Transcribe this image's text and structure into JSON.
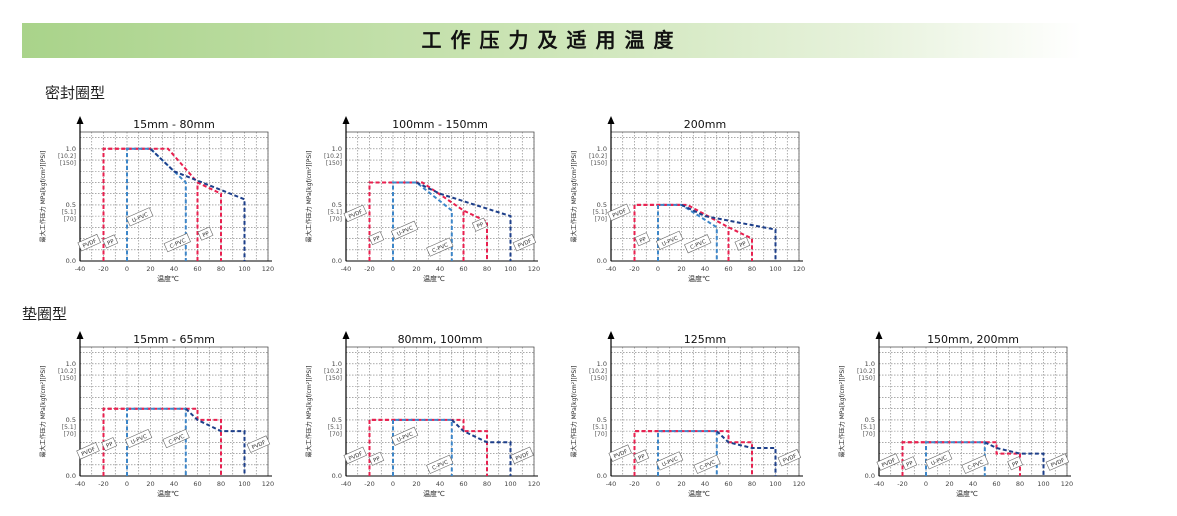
{
  "page_title": "工作压力及适用温度",
  "sections": [
    {
      "label": "密封圈型"
    },
    {
      "label": "垫圈型"
    }
  ],
  "colors": {
    "banner": "#a9d38a",
    "red": "#e8204f",
    "light_blue": "#3d86c8",
    "dark_blue": "#1d3f8a",
    "grid": "#777777"
  },
  "axis_text": {
    "ylabel": "最大工作压力 MPa[kgf/cm²][PSI]",
    "xlabel": "温度℃",
    "y_marks": [
      {
        "v": 1.0,
        "label": "1.0",
        "sub": "[10.2]",
        "sub2": "[150]"
      },
      {
        "v": 0.5,
        "label": "0.5",
        "sub": "[5.1]",
        "sub2": "[70]"
      },
      {
        "v": 0.0,
        "label": "0.0",
        "sub": "",
        "sub2": ""
      }
    ],
    "x_ticks": [
      "-40",
      "-20",
      "0",
      "20",
      "40",
      "60",
      "80",
      "100",
      "120"
    ]
  },
  "chart_data": [
    {
      "section": 0,
      "type": "line",
      "title": "15mm - 80mm",
      "xlim": [
        -40,
        120
      ],
      "ylim": [
        0,
        1.15
      ],
      "grid": true,
      "series": [
        {
          "name": "PVDF",
          "color": "red",
          "points": [
            [
              -20,
              0
            ],
            [
              -20,
              1.0
            ],
            [
              35,
              1.0
            ],
            [
              60,
              0.7
            ],
            [
              80,
              0.6
            ],
            [
              80,
              0
            ]
          ],
          "label_at": [
            -32,
            0.16
          ]
        },
        {
          "name": "PP",
          "color": "red",
          "points": [
            [
              -20,
              0
            ],
            [
              -20,
              1.0
            ],
            [
              20,
              1.0
            ]
          ],
          "label_at": [
            -14,
            0.17
          ]
        },
        {
          "name": "U-PVC",
          "color": "light_blue",
          "points": [
            [
              0,
              0
            ],
            [
              0,
              1.0
            ],
            [
              20,
              1.0
            ],
            [
              50,
              0.7
            ],
            [
              50,
              0
            ]
          ],
          "label_at": [
            11,
            0.39
          ]
        },
        {
          "name": "C-PVC",
          "color": "dark_blue",
          "points": [
            [
              20,
              1.0
            ],
            [
              40,
              0.8
            ],
            [
              100,
              0.55
            ],
            [
              100,
              0
            ]
          ],
          "label_at": [
            43,
            0.16
          ]
        },
        {
          "name": "PP",
          "color": "red",
          "points": [
            [
              60,
              0
            ],
            [
              60,
              0.7
            ]
          ],
          "label_at": [
            67,
            0.24
          ]
        }
      ]
    },
    {
      "section": 0,
      "type": "line",
      "title": "100mm - 150mm",
      "xlim": [
        -40,
        120
      ],
      "ylim": [
        0,
        1.15
      ],
      "grid": true,
      "series": [
        {
          "name": "PVDF",
          "color": "red",
          "points": [
            [
              -20,
              0
            ],
            [
              -20,
              0.7
            ],
            [
              25,
              0.7
            ],
            [
              60,
              0.45
            ],
            [
              80,
              0.35
            ],
            [
              80,
              0
            ]
          ],
          "label_at": [
            -32,
            0.42
          ]
        },
        {
          "name": "PP",
          "color": "red",
          "points": [
            [
              -20,
              0
            ],
            [
              -20,
              0.7
            ],
            [
              20,
              0.7
            ]
          ],
          "label_at": [
            -14,
            0.2
          ]
        },
        {
          "name": "U-PVC",
          "color": "light_blue",
          "points": [
            [
              0,
              0
            ],
            [
              0,
              0.7
            ],
            [
              20,
              0.7
            ],
            [
              50,
              0.45
            ],
            [
              50,
              0
            ]
          ],
          "label_at": [
            10,
            0.27
          ]
        },
        {
          "name": "C-PVC",
          "color": "dark_blue",
          "points": [
            [
              20,
              0.7
            ],
            [
              40,
              0.6
            ],
            [
              100,
              0.4
            ],
            [
              100,
              0
            ]
          ],
          "label_at": [
            40,
            0.12
          ]
        },
        {
          "name": "PP",
          "color": "red",
          "points": [
            [
              60,
              0
            ],
            [
              60,
              0.45
            ]
          ],
          "label_at": [
            74,
            0.32
          ]
        },
        {
          "name": "PVDF",
          "color": "red",
          "points": [
            [
              80,
              0.35
            ]
          ],
          "label_at": [
            112,
            0.16
          ]
        }
      ]
    },
    {
      "section": 0,
      "type": "line",
      "title": "200mm",
      "xlim": [
        -40,
        120
      ],
      "ylim": [
        0,
        1.15
      ],
      "grid": true,
      "series": [
        {
          "name": "PVDF",
          "color": "red",
          "points": [
            [
              -20,
              0
            ],
            [
              -20,
              0.5
            ],
            [
              25,
              0.5
            ],
            [
              60,
              0.3
            ],
            [
              80,
              0.2
            ],
            [
              80,
              0
            ]
          ],
          "label_at": [
            -33,
            0.43
          ]
        },
        {
          "name": "PP",
          "color": "red",
          "points": [
            [
              -20,
              0
            ],
            [
              -20,
              0.5
            ],
            [
              20,
              0.5
            ]
          ],
          "label_at": [
            -13,
            0.19
          ]
        },
        {
          "name": "U-PVC",
          "color": "light_blue",
          "points": [
            [
              0,
              0
            ],
            [
              0,
              0.5
            ],
            [
              20,
              0.5
            ],
            [
              50,
              0.3
            ],
            [
              50,
              0
            ]
          ],
          "label_at": [
            10,
            0.18
          ]
        },
        {
          "name": "C-PVC",
          "color": "dark_blue",
          "points": [
            [
              20,
              0.5
            ],
            [
              40,
              0.4
            ],
            [
              100,
              0.28
            ],
            [
              100,
              0
            ]
          ],
          "label_at": [
            34,
            0.15
          ]
        },
        {
          "name": "PP",
          "color": "red",
          "points": [
            [
              60,
              0
            ],
            [
              60,
              0.3
            ]
          ],
          "label_at": [
            72,
            0.15
          ]
        }
      ]
    },
    {
      "section": 1,
      "type": "line",
      "title": "15mm - 65mm",
      "xlim": [
        -40,
        120
      ],
      "ylim": [
        0,
        1.15
      ],
      "grid": true,
      "series": [
        {
          "name": "PVDF",
          "color": "red",
          "points": [
            [
              -20,
              0
            ],
            [
              -20,
              0.6
            ],
            [
              60,
              0.6
            ],
            [
              60,
              0.5
            ],
            [
              80,
              0.5
            ],
            [
              80,
              0
            ]
          ],
          "label_at": [
            -33,
            0.22
          ]
        },
        {
          "name": "PP",
          "color": "red",
          "points": [
            [
              -20,
              0
            ],
            [
              -20,
              0.6
            ],
            [
              20,
              0.6
            ]
          ],
          "label_at": [
            -15,
            0.28
          ]
        },
        {
          "name": "U-PVC",
          "color": "light_blue",
          "points": [
            [
              0,
              0
            ],
            [
              0,
              0.6
            ],
            [
              50,
              0.6
            ],
            [
              50,
              0
            ]
          ],
          "label_at": [
            10,
            0.33
          ]
        },
        {
          "name": "C-PVC",
          "color": "dark_blue",
          "points": [
            [
              50,
              0.6
            ],
            [
              60,
              0.5
            ],
            [
              80,
              0.4
            ],
            [
              100,
              0.4
            ],
            [
              100,
              0
            ]
          ],
          "label_at": [
            42,
            0.33
          ]
        },
        {
          "name": "PVDF",
          "color": "red",
          "points": [
            [
              80,
              0.5
            ]
          ],
          "label_at": [
            112,
            0.28
          ]
        }
      ]
    },
    {
      "section": 1,
      "type": "line",
      "title": "80mm, 100mm",
      "xlim": [
        -40,
        120
      ],
      "ylim": [
        0,
        1.15
      ],
      "grid": true,
      "series": [
        {
          "name": "PVDF",
          "color": "red",
          "points": [
            [
              -20,
              0
            ],
            [
              -20,
              0.5
            ],
            [
              60,
              0.5
            ],
            [
              60,
              0.4
            ],
            [
              80,
              0.4
            ],
            [
              80,
              0
            ]
          ],
          "label_at": [
            -32,
            0.18
          ]
        },
        {
          "name": "PP",
          "color": "red",
          "points": [
            [
              -20,
              0
            ],
            [
              -20,
              0.5
            ],
            [
              20,
              0.5
            ]
          ],
          "label_at": [
            -14,
            0.15
          ]
        },
        {
          "name": "U-PVC",
          "color": "light_blue",
          "points": [
            [
              0,
              0
            ],
            [
              0,
              0.5
            ],
            [
              50,
              0.5
            ],
            [
              50,
              0
            ]
          ],
          "label_at": [
            10,
            0.35
          ]
        },
        {
          "name": "C-PVC",
          "color": "dark_blue",
          "points": [
            [
              50,
              0.5
            ],
            [
              60,
              0.4
            ],
            [
              80,
              0.3
            ],
            [
              100,
              0.3
            ],
            [
              100,
              0
            ]
          ],
          "label_at": [
            40,
            0.1
          ]
        },
        {
          "name": "PVDF",
          "color": "red",
          "points": [
            [
              80,
              0.4
            ]
          ],
          "label_at": [
            110,
            0.18
          ]
        }
      ]
    },
    {
      "section": 1,
      "type": "line",
      "title": "125mm",
      "xlim": [
        -40,
        120
      ],
      "ylim": [
        0,
        1.15
      ],
      "grid": true,
      "series": [
        {
          "name": "PVDF",
          "color": "red",
          "points": [
            [
              -20,
              0
            ],
            [
              -20,
              0.4
            ],
            [
              60,
              0.4
            ],
            [
              60,
              0.3
            ],
            [
              80,
              0.3
            ],
            [
              80,
              0
            ]
          ],
          "label_at": [
            -32,
            0.2
          ]
        },
        {
          "name": "PP",
          "color": "red",
          "points": [
            [
              -20,
              0
            ],
            [
              -20,
              0.4
            ],
            [
              20,
              0.4
            ]
          ],
          "label_at": [
            -14,
            0.17
          ]
        },
        {
          "name": "U-PVC",
          "color": "light_blue",
          "points": [
            [
              0,
              0
            ],
            [
              0,
              0.4
            ],
            [
              50,
              0.4
            ],
            [
              50,
              0
            ]
          ],
          "label_at": [
            10,
            0.13
          ]
        },
        {
          "name": "C-PVC",
          "color": "dark_blue",
          "points": [
            [
              50,
              0.4
            ],
            [
              60,
              0.3
            ],
            [
              80,
              0.25
            ],
            [
              100,
              0.25
            ],
            [
              100,
              0
            ]
          ],
          "label_at": [
            42,
            0.1
          ]
        },
        {
          "name": "PVDF",
          "color": "red",
          "points": [
            [
              80,
              0.3
            ]
          ],
          "label_at": [
            112,
            0.16
          ]
        }
      ]
    },
    {
      "section": 1,
      "type": "line",
      "title": "150mm, 200mm",
      "xlim": [
        -40,
        120
      ],
      "ylim": [
        0,
        1.15
      ],
      "grid": true,
      "series": [
        {
          "name": "PVDF",
          "color": "red",
          "points": [
            [
              -20,
              0
            ],
            [
              -20,
              0.3
            ],
            [
              60,
              0.3
            ],
            [
              60,
              0.2
            ],
            [
              80,
              0.2
            ],
            [
              80,
              0
            ]
          ],
          "label_at": [
            -32,
            0.12
          ]
        },
        {
          "name": "PP",
          "color": "red",
          "points": [
            [
              -20,
              0
            ],
            [
              -20,
              0.3
            ],
            [
              20,
              0.3
            ]
          ],
          "label_at": [
            -14,
            0.11
          ]
        },
        {
          "name": "U-PVC",
          "color": "light_blue",
          "points": [
            [
              0,
              0
            ],
            [
              0,
              0.3
            ],
            [
              50,
              0.3
            ],
            [
              50,
              0
            ]
          ],
          "label_at": [
            11,
            0.14
          ]
        },
        {
          "name": "C-PVC",
          "color": "dark_blue",
          "points": [
            [
              50,
              0.3
            ],
            [
              60,
              0.25
            ],
            [
              80,
              0.2
            ],
            [
              100,
              0.2
            ],
            [
              100,
              0
            ]
          ],
          "label_at": [
            42,
            0.1
          ]
        },
        {
          "name": "PP",
          "color": "red",
          "points": [
            [
              80,
              0
            ]
          ],
          "label_at": [
            76,
            0.11
          ]
        },
        {
          "name": "PVDF",
          "color": "red",
          "points": [
            [
              80,
              0.2
            ]
          ],
          "label_at": [
            112,
            0.12
          ]
        }
      ]
    }
  ]
}
